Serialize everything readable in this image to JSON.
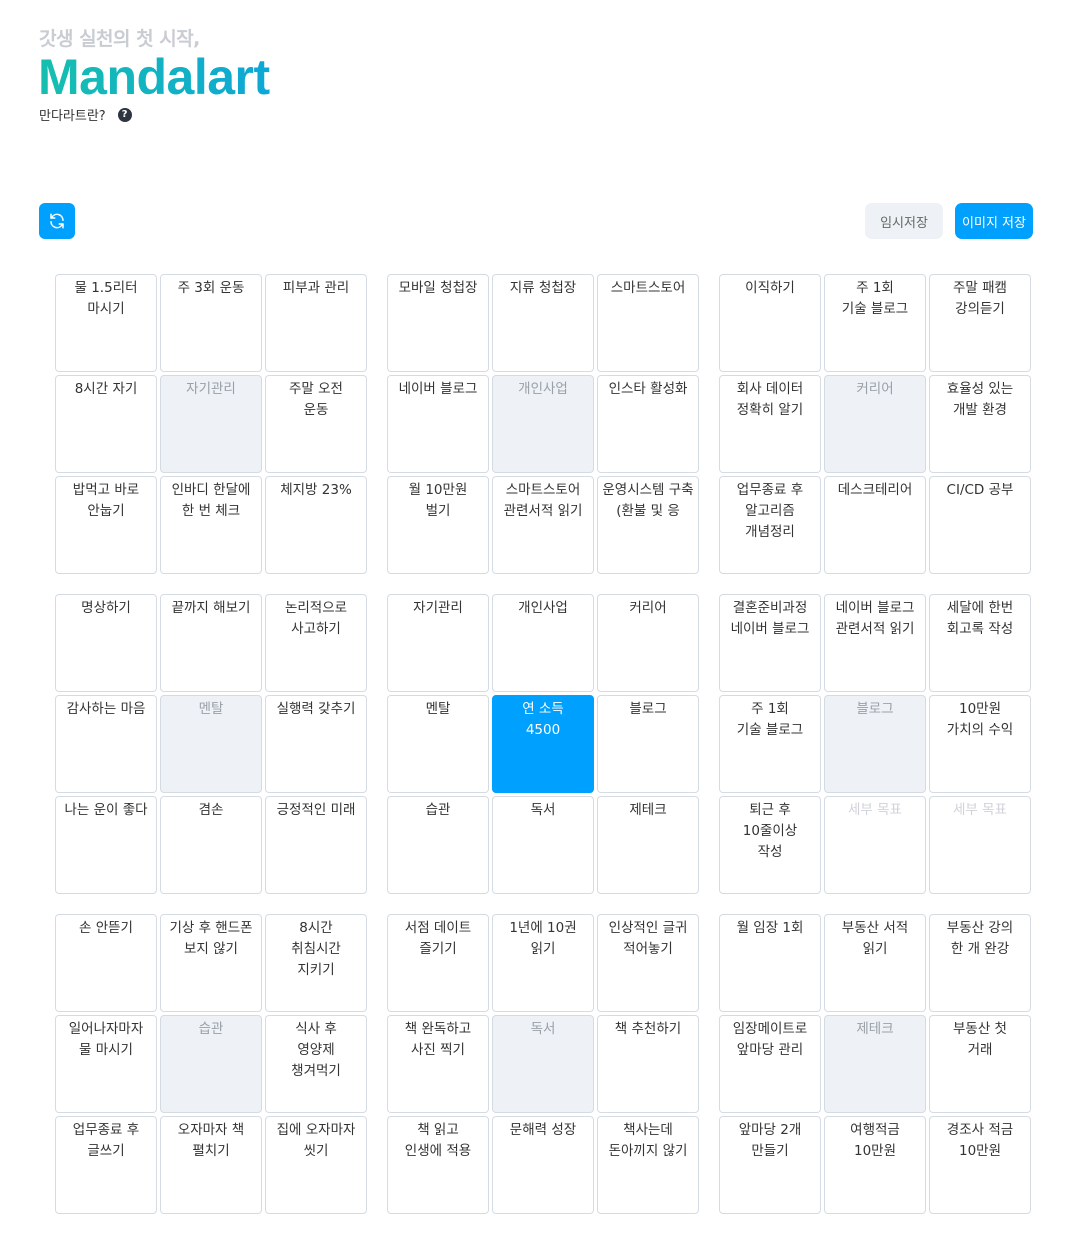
{
  "header": {
    "subtitle": "갓생 실천의 첫 시작,",
    "title": "Mandalart",
    "what_is": "만다라트란?",
    "help_icon": "question-circle-icon"
  },
  "toolbar": {
    "refresh_icon": "refresh-icon",
    "temp_save_label": "임시저장",
    "image_save_label": "이미지 저장"
  },
  "colors": {
    "accent": "#00a0ff",
    "title_gradient": [
      "#16bfae",
      "#0ea7d6"
    ],
    "center_bg": "#eef1f6"
  },
  "placeholder": "세부 목표",
  "blocks": [
    {
      "cells": [
        "물 1.5리터\n마시기",
        "주 3회 운동",
        "피부과 관리",
        "8시간 자기",
        "자기관리",
        "주말 오전\n운동",
        "밥먹고 바로\n안눕기",
        "인바디 한달에 한 번 체크",
        "체지방 23%"
      ]
    },
    {
      "cells": [
        "모바일 청첩장",
        "지류 청첩장",
        "스마트스토어",
        "네이버 블로그",
        "개인사업",
        "인스타 활성화",
        "월 10만원\n벌기",
        "스마트스토어\n관련서적 읽기",
        "운영시스템 구축 (환불 및 응"
      ]
    },
    {
      "cells": [
        "이직하기",
        "주 1회\n기술 블로그",
        "주말 패캠\n강의듣기",
        "회사 데이터 정확히 알기",
        "커리어",
        "효율성 있는 개발 환경",
        "업무종료 후\n알고리즘 개념정리",
        "데스크테리어",
        "CI/CD 공부"
      ]
    },
    {
      "cells": [
        "명상하기",
        "끝까지 해보기",
        "논리적으로 사고하기",
        "감사하는 마음",
        "멘탈",
        "실행력 갖추기",
        "나는 운이 좋다",
        "겸손",
        "긍정적인 미래"
      ]
    },
    {
      "cells": [
        "자기관리",
        "개인사업",
        "커리어",
        "멘탈",
        "연 소득\n4500",
        "블로그",
        "습관",
        "독서",
        "제테크"
      ]
    },
    {
      "cells": [
        "결혼준비과정\n네이버 블로그",
        "네이버 블로그 관련서적 읽기",
        "세달에 한번 회고록 작성",
        "주 1회\n기술 블로그",
        "블로그",
        "10만원\n가치의 수익",
        "퇴근 후\n10줄이상\n작성",
        "",
        ""
      ]
    },
    {
      "cells": [
        "손 안뜯기",
        "기상 후 핸드폰 보지 않기",
        "8시간\n취침시간\n지키기",
        "일어나자마자\n물 마시기",
        "습관",
        "식사 후\n영양제\n챙겨먹기",
        "업무종료 후\n글쓰기",
        "오자마자 책\n펼치기",
        "집에 오자마자\n씻기"
      ]
    },
    {
      "cells": [
        "서점 데이트\n즐기기",
        "1년에 10권\n읽기",
        "인상적인 글귀\n적어놓기",
        "책 완독하고 사진 찍기",
        "독서",
        "책 추천하기",
        "책 읽고\n인생에 적용",
        "문해력 성장",
        "책사는데\n돈아끼지 않기"
      ]
    },
    {
      "cells": [
        "월 임장 1회",
        "부동산 서적\n읽기",
        "부동산 강의\n한 개 완강",
        "임장메이트로\n앞마당 관리",
        "제테크",
        "부동산 첫\n거래",
        "앞마당 2개\n만들기",
        "여행적금\n10만원",
        "경조사 적금\n10만원"
      ]
    }
  ]
}
